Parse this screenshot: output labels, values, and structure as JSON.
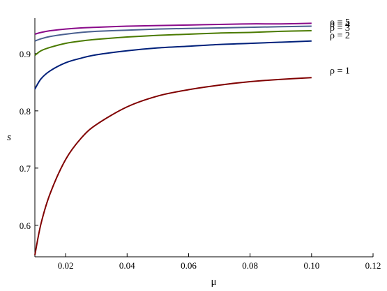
{
  "chart_data": {
    "type": "line",
    "title": "",
    "xlabel": "μ",
    "ylabel": "s",
    "xlim": [
      0.01,
      0.12
    ],
    "ylim": [
      0.545,
      0.962
    ],
    "grid": false,
    "x_ticks": [
      "0.02",
      "0.04",
      "0.06",
      "0.08",
      "0.10",
      "0.12"
    ],
    "x_tick_values": [
      0.02,
      0.04,
      0.06,
      0.08,
      0.1,
      0.12
    ],
    "y_ticks": [
      "0.6",
      "0.7",
      "0.8",
      "0.9"
    ],
    "y_tick_values": [
      0.6,
      0.7,
      0.8,
      0.9
    ],
    "x": [
      0.01,
      0.012,
      0.015,
      0.02,
      0.025,
      0.03,
      0.04,
      0.05,
      0.06,
      0.07,
      0.08,
      0.09,
      0.1
    ],
    "series": [
      {
        "name": "ρ = 1",
        "color": "#800000",
        "values": [
          0.548,
          0.603,
          0.656,
          0.715,
          0.752,
          0.776,
          0.807,
          0.826,
          0.837,
          0.845,
          0.851,
          0.855,
          0.858
        ]
      },
      {
        "name": "ρ = 2",
        "color": "#00207a",
        "values": [
          0.838,
          0.856,
          0.87,
          0.884,
          0.892,
          0.898,
          0.905,
          0.91,
          0.913,
          0.916,
          0.918,
          0.92,
          0.922
        ]
      },
      {
        "name": "ρ = 3",
        "color": "#4a7a00",
        "values": [
          0.897,
          0.905,
          0.911,
          0.918,
          0.922,
          0.925,
          0.929,
          0.932,
          0.934,
          0.936,
          0.937,
          0.939,
          0.94
        ]
      },
      {
        "name": "ρ = 4",
        "color": "#4a6090",
        "values": [
          0.922,
          0.926,
          0.93,
          0.934,
          0.937,
          0.939,
          0.941,
          0.943,
          0.944,
          0.945,
          0.946,
          0.947,
          0.948
        ]
      },
      {
        "name": "ρ = 5",
        "color": "#8a0a8a",
        "values": [
          0.934,
          0.937,
          0.94,
          0.943,
          0.945,
          0.946,
          0.948,
          0.949,
          0.95,
          0.951,
          0.952,
          0.952,
          0.953
        ]
      }
    ],
    "labels": [
      {
        "text": "ρ = 1",
        "y": 0.871
      },
      {
        "text": "ρ = 2",
        "y": 0.933
      },
      {
        "text": "ρ = 3",
        "y": 0.946
      },
      {
        "text": "ρ = 4",
        "y": 0.952
      },
      {
        "text": "ρ = 5",
        "y": 0.956
      }
    ]
  }
}
